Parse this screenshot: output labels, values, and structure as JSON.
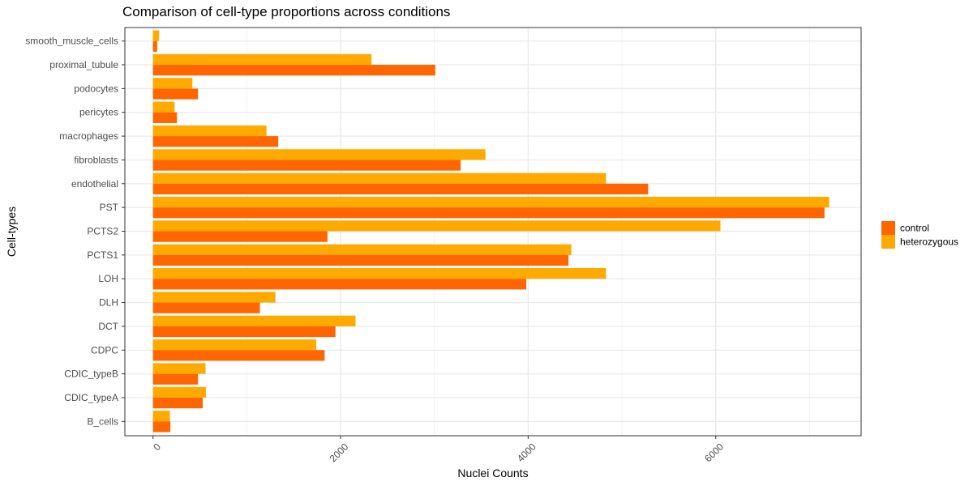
{
  "chart_data": {
    "type": "bar",
    "orientation": "horizontal",
    "title": "Comparison of cell-type proportions across conditions",
    "xlabel": "Nuclei Counts",
    "ylabel": "Cell-types",
    "xlim": [
      -300,
      7550
    ],
    "xticks": [
      0,
      2000,
      4000,
      6000
    ],
    "grid": true,
    "legend_position": "right",
    "categories": [
      "smooth_muscle_cells",
      "proximal_tubule",
      "podocytes",
      "pericytes",
      "macrophages",
      "fibroblasts",
      "endothelial",
      "PST",
      "PCTS2",
      "PCTS1",
      "LOH",
      "DLH",
      "DCT",
      "CDPC",
      "CDIC_typeB",
      "CDIC_typeA",
      "B_cells"
    ],
    "series": [
      {
        "name": "control",
        "color": "#FF6600",
        "values": [
          45,
          3010,
          480,
          255,
          1335,
          3280,
          5280,
          7160,
          1860,
          4430,
          3980,
          1140,
          1945,
          1830,
          480,
          530,
          185
        ]
      },
      {
        "name": "heterozygous",
        "color": "#FFAA00",
        "values": [
          65,
          2330,
          420,
          230,
          1210,
          3545,
          4830,
          7210,
          6050,
          4460,
          4830,
          1305,
          2160,
          1740,
          560,
          565,
          180
        ]
      }
    ]
  }
}
